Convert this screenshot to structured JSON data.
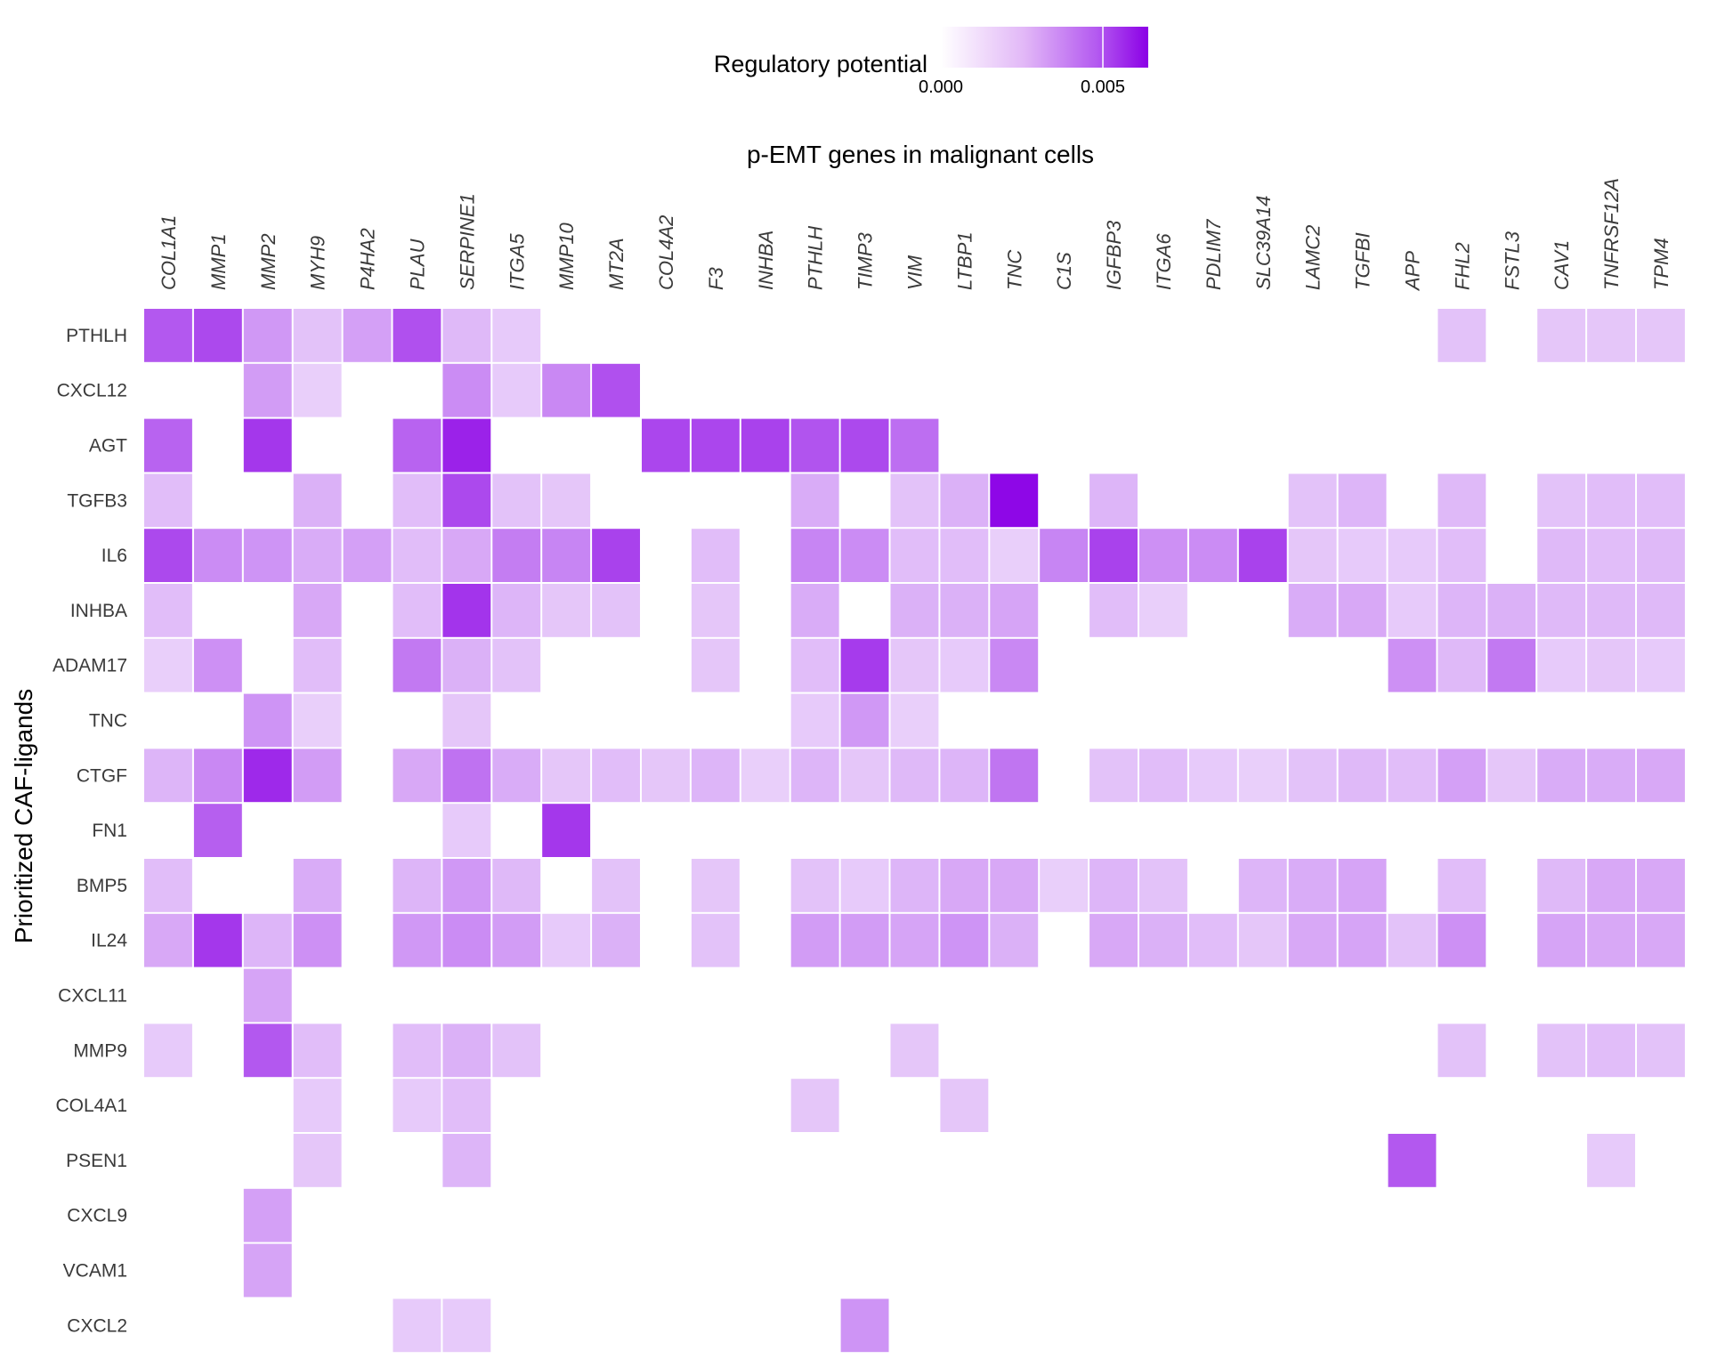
{
  "chart_data": {
    "type": "heatmap",
    "xlabel": "p-EMT genes in malignant cells",
    "ylabel": "Prioritized CAF-ligands",
    "legend": {
      "title": "Regulatory potential",
      "placement": "top",
      "ticks": [
        "0.000",
        "0.005"
      ],
      "tick_values": [
        0.0,
        0.005
      ],
      "range": [
        0,
        0.0064
      ],
      "color_low": "#ffffff",
      "color_high": "#8b00e6"
    },
    "columns": [
      "COL1A1",
      "MMP1",
      "MMP2",
      "MYH9",
      "P4HA2",
      "PLAU",
      "SERPINE1",
      "ITGA5",
      "MMP10",
      "MT2A",
      "COL4A2",
      "F3",
      "INHBA",
      "PTHLH",
      "TIMP3",
      "VIM",
      "LTBP1",
      "TNC",
      "C1S",
      "IGFBP3",
      "ITGA6",
      "PDLIM7",
      "SLC39A14",
      "LAMC2",
      "TGFBI",
      "APP",
      "FHL2",
      "FSTL3",
      "CAV1",
      "TNFRSF12A",
      "TPM4"
    ],
    "rows": [
      "PTHLH",
      "CXCL12",
      "AGT",
      "TGFB3",
      "IL6",
      "INHBA",
      "ADAM17",
      "TNC",
      "CTGF",
      "FN1",
      "BMP5",
      "IL24",
      "CXCL11",
      "MMP9",
      "COL4A1",
      "PSEN1",
      "CXCL9",
      "VCAM1",
      "CXCL2"
    ],
    "values": [
      [
        0.0039,
        0.0043,
        0.0022,
        0.0012,
        0.002,
        0.0041,
        0.0014,
        0.001,
        null,
        null,
        null,
        null,
        null,
        null,
        null,
        null,
        null,
        null,
        null,
        null,
        null,
        null,
        null,
        null,
        null,
        null,
        0.0012,
        null,
        0.0011,
        0.0011,
        0.0011
      ],
      [
        null,
        null,
        0.0021,
        0.0009,
        null,
        null,
        0.0025,
        0.001,
        0.0026,
        0.0041,
        null,
        null,
        null,
        null,
        null,
        null,
        null,
        null,
        null,
        null,
        null,
        null,
        null,
        null,
        null,
        null,
        null,
        null,
        null,
        null,
        null
      ],
      [
        0.0036,
        null,
        0.0048,
        null,
        null,
        0.0036,
        0.0054,
        null,
        null,
        null,
        0.0044,
        0.0044,
        0.0045,
        0.004,
        0.0043,
        0.0033,
        null,
        null,
        null,
        null,
        null,
        null,
        null,
        null,
        null,
        null,
        null,
        null,
        null,
        null,
        null
      ],
      [
        0.0013,
        null,
        null,
        0.0016,
        null,
        0.0013,
        0.0043,
        0.0012,
        0.0011,
        null,
        null,
        null,
        null,
        0.0017,
        null,
        0.0012,
        0.0016,
        0.0062,
        null,
        0.0015,
        null,
        null,
        null,
        0.0012,
        0.0015,
        null,
        0.0014,
        null,
        0.0012,
        0.0013,
        0.0013
      ],
      [
        0.0043,
        0.0025,
        0.0023,
        0.0017,
        0.002,
        0.0013,
        0.0018,
        0.0029,
        0.0027,
        0.0045,
        null,
        0.0013,
        null,
        0.0027,
        0.0025,
        0.0013,
        0.0013,
        0.0009,
        0.0027,
        0.0045,
        0.0024,
        0.0025,
        0.0045,
        0.0011,
        0.001,
        0.001,
        0.0013,
        null,
        0.0014,
        0.0013,
        0.0014
      ],
      [
        0.0013,
        null,
        null,
        0.0018,
        null,
        0.0013,
        0.0049,
        0.0015,
        0.0011,
        0.0012,
        null,
        0.0011,
        null,
        0.0017,
        null,
        0.0016,
        0.0016,
        0.0019,
        null,
        0.0013,
        0.0009,
        null,
        null,
        0.0017,
        0.0018,
        0.001,
        0.0015,
        0.0016,
        0.0014,
        0.0014,
        0.0014
      ],
      [
        0.0009,
        0.0024,
        null,
        0.0013,
        null,
        0.003,
        0.0016,
        0.0012,
        null,
        null,
        null,
        0.0011,
        null,
        0.0013,
        0.0047,
        0.0011,
        0.001,
        0.0026,
        null,
        null,
        null,
        null,
        null,
        null,
        null,
        0.0024,
        0.0014,
        0.003,
        0.001,
        0.0011,
        0.001
      ],
      [
        null,
        null,
        0.0023,
        0.0009,
        null,
        null,
        0.0011,
        null,
        null,
        null,
        null,
        null,
        null,
        0.001,
        0.0022,
        0.0009,
        null,
        null,
        null,
        null,
        null,
        null,
        null,
        null,
        null,
        null,
        null,
        null,
        null,
        null,
        null
      ],
      [
        0.0015,
        0.0026,
        0.0052,
        0.0021,
        null,
        0.0018,
        0.0032,
        0.0017,
        0.0011,
        0.0013,
        0.0011,
        0.0015,
        0.0009,
        0.0015,
        0.0011,
        0.0014,
        0.0015,
        0.0031,
        null,
        0.0012,
        0.0013,
        0.001,
        0.0009,
        0.0012,
        0.0014,
        0.0013,
        0.002,
        0.0011,
        0.0017,
        0.0017,
        0.0018
      ],
      [
        null,
        0.0037,
        null,
        null,
        null,
        null,
        0.001,
        null,
        0.0048,
        null,
        null,
        null,
        null,
        null,
        null,
        null,
        null,
        null,
        null,
        null,
        null,
        null,
        null,
        null,
        null,
        null,
        null,
        null,
        null,
        null,
        null
      ],
      [
        0.0013,
        null,
        null,
        0.0017,
        null,
        0.0015,
        0.0022,
        0.0014,
        null,
        0.0012,
        null,
        0.0011,
        null,
        0.0012,
        0.001,
        0.0015,
        0.0018,
        0.0018,
        0.0009,
        0.0015,
        0.0012,
        null,
        0.0015,
        0.0017,
        0.0019,
        null,
        0.0013,
        null,
        0.0014,
        0.0018,
        0.0018
      ],
      [
        0.0018,
        0.0048,
        0.0015,
        0.0024,
        null,
        0.0022,
        0.0025,
        0.0021,
        0.001,
        0.0016,
        null,
        0.0012,
        null,
        0.0021,
        0.0021,
        0.0019,
        0.0023,
        0.0016,
        null,
        0.0018,
        0.0016,
        0.0013,
        0.0011,
        0.0018,
        0.0019,
        0.0012,
        0.0024,
        null,
        0.0019,
        0.0018,
        0.0018
      ],
      [
        null,
        null,
        0.0019,
        null,
        null,
        null,
        null,
        null,
        null,
        null,
        null,
        null,
        null,
        null,
        null,
        null,
        null,
        null,
        null,
        null,
        null,
        null,
        null,
        null,
        null,
        null,
        null,
        null,
        null,
        null,
        null
      ],
      [
        0.001,
        null,
        0.0039,
        0.0013,
        null,
        0.0013,
        0.0016,
        0.0012,
        null,
        null,
        null,
        null,
        null,
        null,
        null,
        0.0011,
        null,
        null,
        null,
        null,
        null,
        null,
        null,
        null,
        null,
        null,
        0.0012,
        null,
        0.0012,
        0.0013,
        0.0012
      ],
      [
        null,
        null,
        null,
        0.001,
        null,
        0.001,
        0.0013,
        null,
        null,
        null,
        null,
        null,
        null,
        0.0011,
        null,
        null,
        0.0011,
        null,
        null,
        null,
        null,
        null,
        null,
        null,
        null,
        null,
        null,
        null,
        null,
        null,
        null
      ],
      [
        null,
        null,
        null,
        0.0011,
        null,
        null,
        0.0015,
        null,
        null,
        null,
        null,
        null,
        null,
        null,
        null,
        null,
        null,
        null,
        null,
        null,
        null,
        null,
        null,
        null,
        null,
        0.0039,
        null,
        null,
        null,
        0.001,
        null
      ],
      [
        null,
        null,
        0.002,
        null,
        null,
        null,
        null,
        null,
        null,
        null,
        null,
        null,
        null,
        null,
        null,
        null,
        null,
        null,
        null,
        null,
        null,
        null,
        null,
        null,
        null,
        null,
        null,
        null,
        null,
        null,
        null
      ],
      [
        null,
        null,
        0.0019,
        null,
        null,
        null,
        null,
        null,
        null,
        null,
        null,
        null,
        null,
        null,
        null,
        null,
        null,
        null,
        null,
        null,
        null,
        null,
        null,
        null,
        null,
        null,
        null,
        null,
        null,
        null,
        null
      ],
      [
        null,
        null,
        null,
        null,
        null,
        0.001,
        0.001,
        null,
        null,
        null,
        null,
        null,
        null,
        null,
        0.0023,
        null,
        null,
        null,
        null,
        null,
        null,
        null,
        null,
        null,
        null,
        null,
        null,
        null,
        null,
        null,
        null
      ]
    ]
  }
}
